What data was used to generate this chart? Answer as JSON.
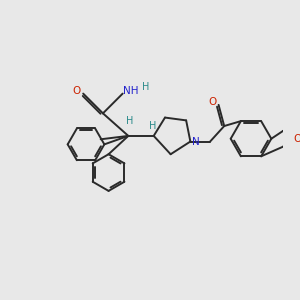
{
  "background_color": "#e8e8e8",
  "bond_color": "#2a2a2a",
  "atom_colors": {
    "N": "#2222cc",
    "O": "#cc2200",
    "H": "#2a8a8a",
    "C": "#2a2a2a"
  },
  "figsize": [
    3.0,
    3.0
  ],
  "dpi": 100
}
